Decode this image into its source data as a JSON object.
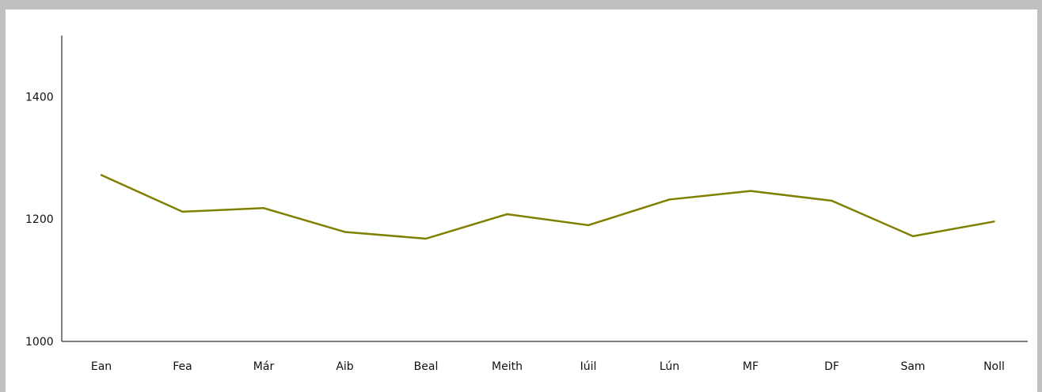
{
  "chart_data": {
    "type": "line",
    "categories": [
      "Ean",
      "Fea",
      "Már",
      "Aib",
      "Beal",
      "Meith",
      "Iúil",
      "Lún",
      "MF",
      "DF",
      "Sam",
      "Noll"
    ],
    "series": [
      {
        "values": [
          1272,
          1212,
          1218,
          1179,
          1168,
          1208,
          1190,
          1232,
          1246,
          1230,
          1172,
          1196
        ],
        "color": "#808000"
      }
    ],
    "ylim": [
      1000,
      1500
    ],
    "yticks": [
      1000,
      1200,
      1400
    ],
    "ytick_labels": [
      "1000",
      "1200",
      "1400"
    ],
    "grid": false,
    "title": "",
    "xlabel": "",
    "ylabel": "",
    "colors": {
      "background": "#c0c0c0",
      "plot_background": "#ffffff",
      "axis": "#000000",
      "line": "#808000"
    }
  }
}
